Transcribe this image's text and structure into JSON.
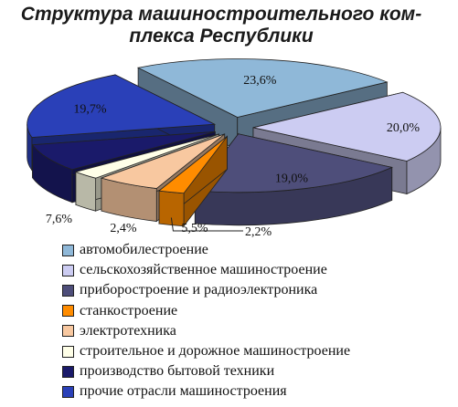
{
  "chart_data": {
    "type": "pie",
    "title_lines": [
      "Структура машиностроительного ком-",
      "плекса Республики"
    ],
    "series": [
      {
        "name": "автомобилестроение",
        "value": 23.6,
        "label": "23,6%",
        "color": "#8fb8d8"
      },
      {
        "name": "сельскохозяйственное машиностроение",
        "value": 20.0,
        "label": "20,0%",
        "color": "#ccccf2"
      },
      {
        "name": "приборостроение и радиоэлектроника",
        "value": 19.0,
        "label": "19,0%",
        "color": "#4e4e7a"
      },
      {
        "name": "станкостроение",
        "value": 2.2,
        "label": "2,2%",
        "color": "#ff8c00"
      },
      {
        "name": "электротехника",
        "value": 5.5,
        "label": "5,5%",
        "color": "#f8c8a0"
      },
      {
        "name": "строительное и дорожное машиностроение",
        "value": 2.4,
        "label": "2,4%",
        "color": "#ffffe8"
      },
      {
        "name": "производство бытовой техники",
        "value": 7.6,
        "label": "7,6%",
        "color": "#1a1a6a"
      },
      {
        "name": "прочие отрасли машиностроения",
        "value": 19.7,
        "label": "19,7%",
        "color": "#2a40b8"
      }
    ]
  }
}
